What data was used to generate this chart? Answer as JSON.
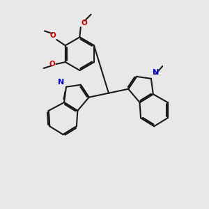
{
  "background_color": "#e8e8e8",
  "bond_color": "#1a1a1a",
  "nitrogen_color": "#0000cc",
  "oxygen_color": "#cc0000",
  "bond_width": 1.5,
  "figsize": [
    3.0,
    3.0
  ],
  "dpi": 100,
  "xlim": [
    0,
    10
  ],
  "ylim": [
    0,
    10
  ]
}
